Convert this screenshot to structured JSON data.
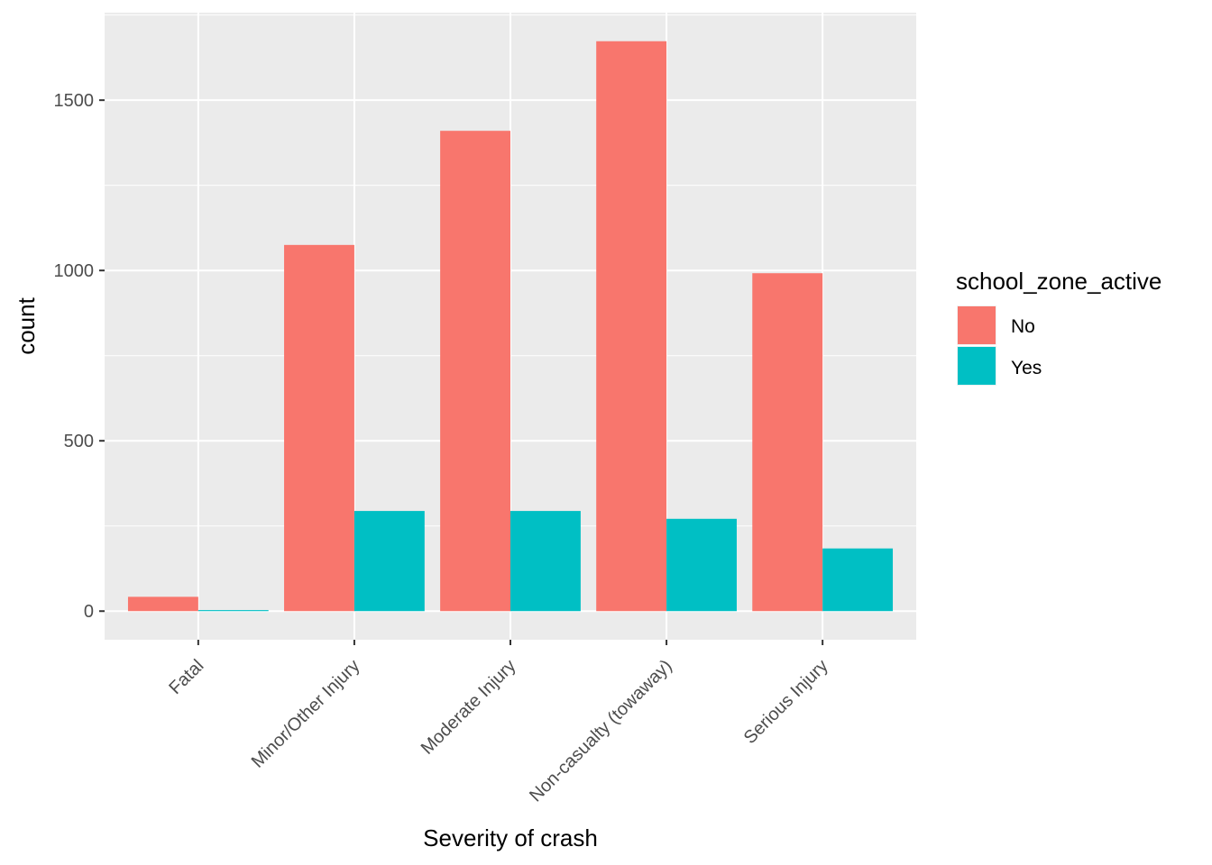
{
  "chart_data": {
    "type": "bar",
    "xlabel": "Severity of crash",
    "ylabel": "count",
    "categories": [
      "Fatal",
      "Minor/Other Injury",
      "Moderate Injury",
      "Non-casualty (towaway)",
      "Serious Injury"
    ],
    "series": [
      {
        "name": "No",
        "color": "#F8766D",
        "values": [
          42,
          1075,
          1410,
          1673,
          992
        ]
      },
      {
        "name": "Yes",
        "color": "#00BFC4",
        "values": [
          3,
          294,
          294,
          271,
          184
        ]
      }
    ],
    "y_ticks": [
      0,
      500,
      1000,
      1500
    ],
    "y_tick_labels": [
      "0",
      "500",
      "1000",
      "1500"
    ],
    "ylim": [
      -84,
      1757
    ],
    "grid": true,
    "panel_background": "#EBEBEB",
    "legend": {
      "title": "school_zone_active",
      "position": "right",
      "items": [
        "No",
        "Yes"
      ]
    }
  }
}
